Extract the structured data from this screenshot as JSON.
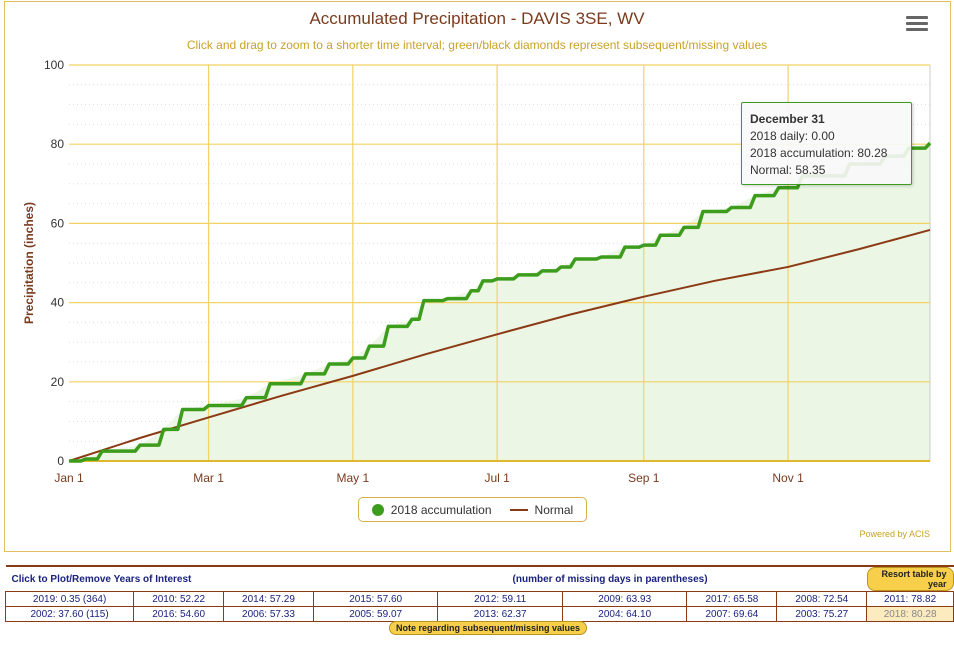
{
  "title": "Accumulated Precipitation - DAVIS 3SE, WV",
  "subtitle": "Click and drag to zoom to a shorter time interval; green/black diamonds represent subsequent/missing values",
  "powered_by": "Powered by ACIS",
  "tooltip": {
    "date": "December 31",
    "daily": "2018 daily: 0.00",
    "accum": "2018 accumulation: 80.28",
    "normal": "Normal: 58.35"
  },
  "chart_data": {
    "type": "line",
    "title": "Accumulated Precipitation - DAVIS 3SE, WV",
    "ylabel": "Precipitation (inches)",
    "ylim": [
      0,
      100
    ],
    "yticks": [
      "0",
      "20",
      "40",
      "60",
      "80",
      "100"
    ],
    "xticks": [
      {
        "label": "Jan 1",
        "day": 0
      },
      {
        "label": "Mar 1",
        "day": 59
      },
      {
        "label": "May 1",
        "day": 120
      },
      {
        "label": "Jul 1",
        "day": 181
      },
      {
        "label": "Sep 1",
        "day": 243
      },
      {
        "label": "Nov 1",
        "day": 304
      }
    ],
    "grid": true,
    "legend": "bottom-center",
    "colors": {
      "accum": "#3c9c1c",
      "normal": "#8b3a14",
      "fill": "#eaf5e2",
      "grid": "#f2d264"
    },
    "series": [
      {
        "name": "2018 accumulation",
        "x": [
          0,
          7,
          14,
          30,
          40,
          48,
          59,
          75,
          85,
          100,
          110,
          120,
          127,
          135,
          145,
          150,
          160,
          170,
          175,
          181,
          190,
          200,
          208,
          214,
          225,
          235,
          243,
          250,
          260,
          268,
          280,
          290,
          300,
          310,
          330,
          345,
          355,
          364
        ],
        "values": [
          0,
          0.5,
          2.5,
          4,
          8,
          13,
          14,
          16,
          19.5,
          22,
          24.5,
          26,
          29,
          34,
          35.8,
          40.5,
          41,
          43,
          45.5,
          46,
          47,
          48,
          49,
          51,
          51.5,
          54,
          54.5,
          57,
          59,
          63,
          64,
          67,
          69,
          72,
          75,
          77,
          79,
          80.28
        ]
      },
      {
        "name": "Normal",
        "x": [
          0,
          31,
          59,
          90,
          120,
          151,
          181,
          212,
          243,
          273,
          304,
          334,
          364
        ],
        "values": [
          0,
          6,
          11,
          16.5,
          21.5,
          27,
          32,
          37,
          41.5,
          45.5,
          49,
          53.5,
          58.35
        ]
      }
    ]
  },
  "table": {
    "header_left": "Click to Plot/Remove Years of Interest",
    "header_mid": "(number of missing days in parentheses)",
    "resort": "Resort table by year",
    "rows": [
      [
        "2019: 0.35 (364)",
        "2010: 52.22",
        "2014: 57.29",
        "2015: 57.60",
        "2012: 59.11",
        "2009: 63.93",
        "2017: 65.58",
        "2008: 72.54",
        "2011: 78.82"
      ],
      [
        "2002: 37.60 (115)",
        "2016: 54.60",
        "2006: 57.33",
        "2005: 59.07",
        "2013: 62.37",
        "2004: 64.10",
        "2007: 69.64",
        "2003: 75.27",
        "2018: 80.28"
      ]
    ],
    "note": "Note regarding subsequent/missing values"
  }
}
